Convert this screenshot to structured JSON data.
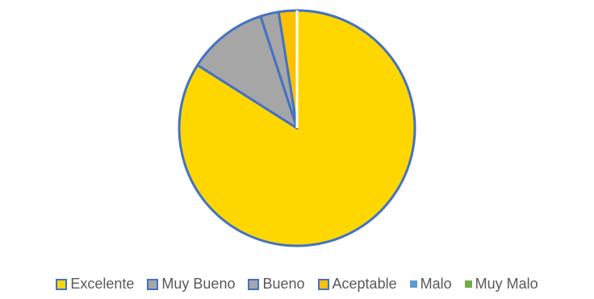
{
  "chart_data": {
    "type": "pie",
    "title": "",
    "categories": [
      "Excelente",
      "Muy Bueno",
      "Bueno",
      "Aceptable",
      "Malo",
      "Muy Malo"
    ],
    "values": [
      84,
      11,
      2.5,
      2.5,
      0,
      0
    ],
    "colors": [
      "#FFD700",
      "#A6A6A6",
      "#A6A6A6",
      "#FFC000",
      "#5B9BD5",
      "#70AD47"
    ],
    "border_colors": [
      "#4472C4",
      "#4472C4",
      "#4472C4",
      "#4472C4",
      "#5B9BD5",
      "#70AD47"
    ],
    "slice_edge_color": "#4472C4",
    "legend_position": "bottom"
  }
}
